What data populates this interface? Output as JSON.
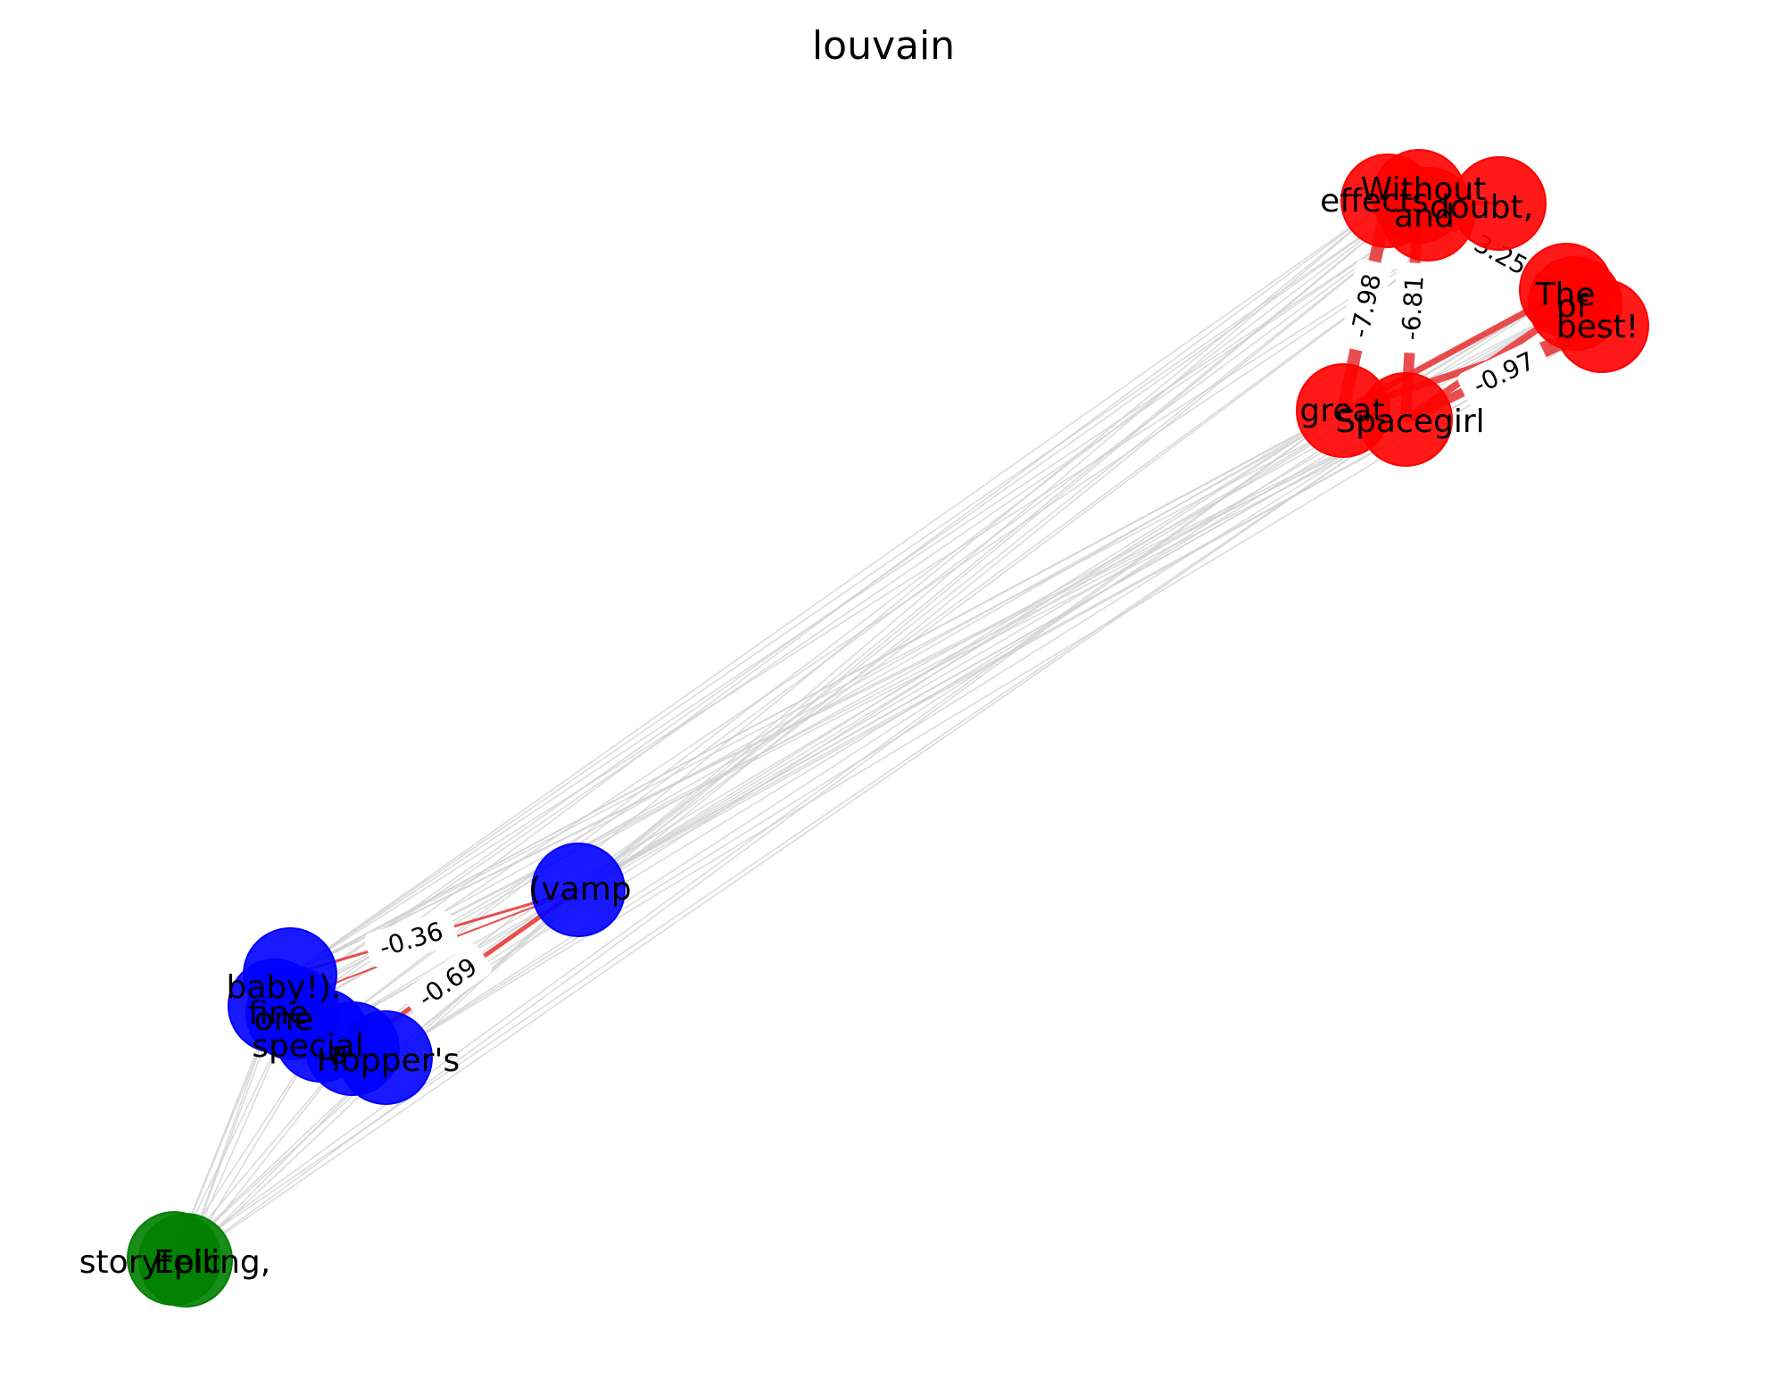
{
  "title": "louvain",
  "colors": {
    "community_red": "#ff0000",
    "community_blue": "#0000ff",
    "community_green": "#008000",
    "intra_edge": "#e83a3a",
    "inter_edge": "#cfcfcf",
    "label_box": "#ffffff"
  },
  "communities": [
    {
      "id": "red",
      "color": "#ff0000",
      "nodes": [
        "Without",
        "effects",
        "and",
        "doubt,",
        "The",
        "of",
        "best!",
        "great",
        "Spacegirl"
      ]
    },
    {
      "id": "blue",
      "color": "#0000ff",
      "nodes": [
        "(vamp",
        "baby!).",
        "fine",
        "one",
        "special",
        "a",
        "Hopper's"
      ]
    },
    {
      "id": "green",
      "color": "#008000",
      "nodes": [
        "storytelling,",
        "Epic"
      ]
    }
  ],
  "edge_weight_labels": [
    "-7.98",
    "-6.81",
    "-0.97",
    "-0.36",
    "-0.69",
    "-3.25"
  ],
  "edge_label_links": [
    {
      "label": "-7.98",
      "from": "great",
      "to": "effects"
    },
    {
      "label": "-6.81",
      "from": "Spacegirl",
      "to": "Without"
    },
    {
      "label": "-0.97",
      "from": "Spacegirl",
      "to": "best!"
    },
    {
      "label": "-3.25",
      "from": "and",
      "to": "The"
    },
    {
      "label": "-0.36",
      "from": "baby!).",
      "to": "(vamp"
    },
    {
      "label": "-0.69",
      "from": "a",
      "to": "(vamp"
    }
  ]
}
